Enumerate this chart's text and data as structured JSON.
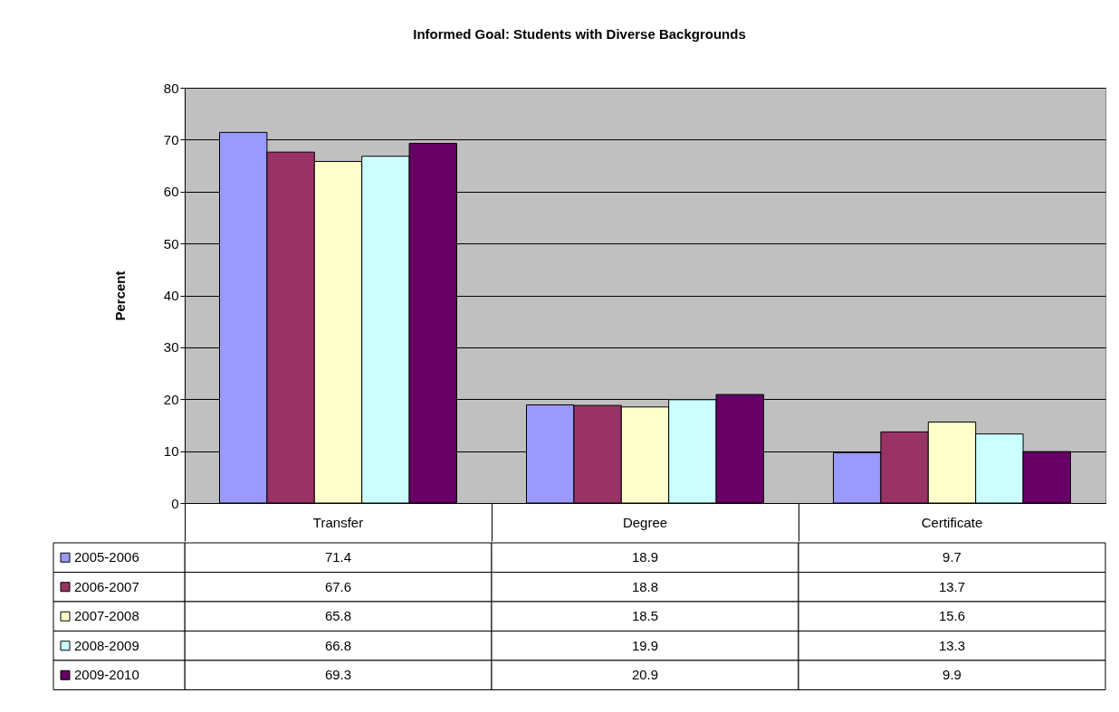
{
  "chart_data": {
    "type": "bar",
    "title": "Informed Goal:  Students with Diverse Backgrounds",
    "ylabel": "Percent",
    "categories": [
      "Transfer",
      "Degree",
      "Certificate"
    ],
    "series": [
      {
        "name": "2005-2006",
        "color": "#9999ff",
        "values": [
          71.4,
          18.9,
          9.7
        ]
      },
      {
        "name": "2006-2007",
        "color": "#993366",
        "values": [
          67.6,
          18.8,
          13.7
        ]
      },
      {
        "name": "2007-2008",
        "color": "#ffffcc",
        "values": [
          65.8,
          18.5,
          15.6
        ]
      },
      {
        "name": "2008-2009",
        "color": "#ccffff",
        "values": [
          66.8,
          19.9,
          13.3
        ]
      },
      {
        "name": "2009-2010",
        "color": "#660066",
        "values": [
          69.3,
          20.9,
          9.9
        ]
      }
    ],
    "ylim": [
      0,
      80
    ],
    "yticks": [
      0,
      10,
      20,
      30,
      40,
      50,
      60,
      70,
      80
    ],
    "grid": "y",
    "legend": "bottom",
    "data_labels": true
  }
}
